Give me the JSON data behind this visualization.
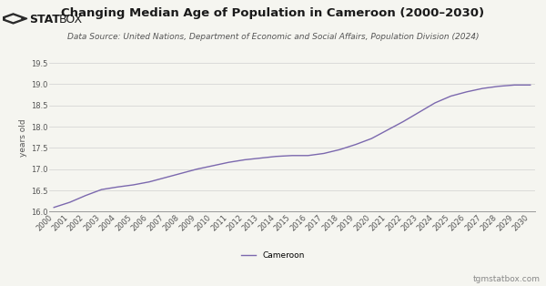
{
  "title": "Changing Median Age of Population in Cameroon (2000–2030)",
  "subtitle": "Data Source: United Nations, Department of Economic and Social Affairs, Population Division (2024)",
  "ylabel": "years old",
  "watermark": "tgmstatbox.com",
  "legend_label": "Cameroon",
  "line_color": "#7B68AE",
  "background_color": "#f5f5f0",
  "years": [
    2000,
    2001,
    2002,
    2003,
    2004,
    2005,
    2006,
    2007,
    2008,
    2009,
    2010,
    2011,
    2012,
    2013,
    2014,
    2015,
    2016,
    2017,
    2018,
    2019,
    2020,
    2021,
    2022,
    2023,
    2024,
    2025,
    2026,
    2027,
    2028,
    2029,
    2030
  ],
  "values": [
    16.1,
    16.22,
    16.38,
    16.52,
    16.58,
    16.63,
    16.7,
    16.8,
    16.9,
    17.0,
    17.08,
    17.16,
    17.22,
    17.26,
    17.3,
    17.32,
    17.32,
    17.37,
    17.46,
    17.58,
    17.72,
    17.92,
    18.12,
    18.34,
    18.56,
    18.72,
    18.82,
    18.9,
    18.95,
    18.98,
    18.98
  ],
  "ylim": [
    16.0,
    19.5
  ],
  "yticks": [
    16.0,
    16.5,
    17.0,
    17.5,
    18.0,
    18.5,
    19.0,
    19.5
  ],
  "title_fontsize": 9.5,
  "subtitle_fontsize": 6.5,
  "ylabel_fontsize": 6.5,
  "tick_fontsize": 6,
  "legend_fontsize": 6.5,
  "watermark_fontsize": 6.5
}
